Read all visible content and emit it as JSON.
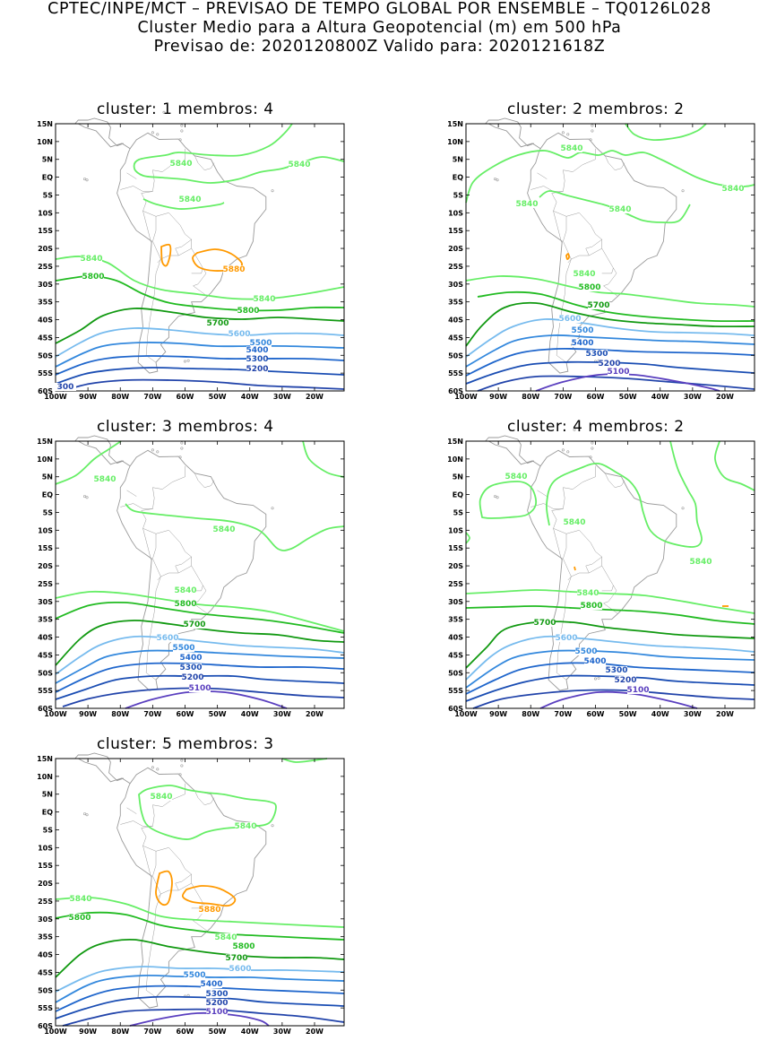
{
  "header": {
    "line1": "CPTEC/INPE/MCT – PREVISAO DE TEMPO GLOBAL POR ENSEMBLE – TQ0126L028",
    "line2": "Cluster Medio para a Altura Geopotencial (m) em 500 hPa",
    "line3": "Previsao de: 2020120800Z    Valido para: 2020121618Z"
  },
  "axes": {
    "lat_ticks": [
      "15N",
      "10N",
      "5N",
      "EQ",
      "5S",
      "10S",
      "15S",
      "20S",
      "25S",
      "30S",
      "35S",
      "40S",
      "45S",
      "50S",
      "55S",
      "60S"
    ],
    "lon_ticks": [
      "100W",
      "90W",
      "80W",
      "70W",
      "60W",
      "50W",
      "40W",
      "30W",
      "20W"
    ]
  },
  "colors": {
    "c5840": "#66ee66",
    "c5800": "#22bb22",
    "c5700": "#119911",
    "c5600": "#77bbee",
    "c5500": "#3388dd",
    "c5400": "#1f66cc",
    "c5300": "#1a4db3",
    "c5200": "#2244aa",
    "c5100": "#5a3fbf",
    "c5880": "#ff9900",
    "coast": "#9a9a9a"
  },
  "panels": [
    {
      "title": "cluster: 1   membros: 4",
      "labels": [
        {
          "text": "5840",
          "c": "c5840"
        },
        {
          "text": "5840",
          "c": "c5840"
        },
        {
          "text": "5840",
          "c": "c5840"
        },
        {
          "text": "5840",
          "c": "c5840"
        },
        {
          "text": "5800",
          "c": "c5800"
        },
        {
          "text": "5880",
          "c": "c5880"
        },
        {
          "text": "5840",
          "c": "c5840"
        },
        {
          "text": "5800",
          "c": "c5800"
        },
        {
          "text": "5700",
          "c": "c5700"
        },
        {
          "text": "5600",
          "c": "c5600"
        },
        {
          "text": "5500",
          "c": "c5500"
        },
        {
          "text": "5400",
          "c": "c5400"
        },
        {
          "text": "5300",
          "c": "c5300"
        },
        {
          "text": "5200",
          "c": "c5200"
        },
        {
          "text": "300",
          "c": "c5200"
        }
      ]
    },
    {
      "title": "cluster: 2   membros: 2",
      "labels": [
        {
          "text": "5840",
          "c": "c5840"
        },
        {
          "text": "5840",
          "c": "c5840"
        },
        {
          "text": "5840",
          "c": "c5840"
        },
        {
          "text": "5840",
          "c": "c5840"
        },
        {
          "text": "5840",
          "c": "c5840"
        },
        {
          "text": "5800",
          "c": "c5800"
        },
        {
          "text": "5700",
          "c": "c5700"
        },
        {
          "text": "5600",
          "c": "c5600"
        },
        {
          "text": "5500",
          "c": "c5500"
        },
        {
          "text": "5400",
          "c": "c5400"
        },
        {
          "text": "5300",
          "c": "c5300"
        },
        {
          "text": "5200",
          "c": "c5200"
        },
        {
          "text": "5100",
          "c": "c5100"
        }
      ]
    },
    {
      "title": "cluster: 3   membros: 4",
      "labels": [
        {
          "text": "5840",
          "c": "c5840"
        },
        {
          "text": "5840",
          "c": "c5840"
        },
        {
          "text": "5840",
          "c": "c5840"
        },
        {
          "text": "5800",
          "c": "c5800"
        },
        {
          "text": "5700",
          "c": "c5700"
        },
        {
          "text": "5600",
          "c": "c5600"
        },
        {
          "text": "5500",
          "c": "c5500"
        },
        {
          "text": "5400",
          "c": "c5400"
        },
        {
          "text": "5300",
          "c": "c5300"
        },
        {
          "text": "5200",
          "c": "c5200"
        },
        {
          "text": "5100",
          "c": "c5100"
        }
      ]
    },
    {
      "title": "cluster: 4   membros: 2",
      "labels": [
        {
          "text": "5840",
          "c": "c5840"
        },
        {
          "text": "5840",
          "c": "c5840"
        },
        {
          "text": "5840",
          "c": "c5840"
        },
        {
          "text": "5840",
          "c": "c5840"
        },
        {
          "text": "5800",
          "c": "c5800"
        },
        {
          "text": "5700",
          "c": "c5700"
        },
        {
          "text": "5600",
          "c": "c5600"
        },
        {
          "text": "5500",
          "c": "c5500"
        },
        {
          "text": "5400",
          "c": "c5400"
        },
        {
          "text": "5300",
          "c": "c5300"
        },
        {
          "text": "5200",
          "c": "c5200"
        },
        {
          "text": "5100",
          "c": "c5100"
        }
      ]
    },
    {
      "title": "cluster: 5   membros: 3",
      "labels": [
        {
          "text": "5840",
          "c": "c5840"
        },
        {
          "text": "5840",
          "c": "c5840"
        },
        {
          "text": "5840",
          "c": "c5840"
        },
        {
          "text": "5800",
          "c": "c5800"
        },
        {
          "text": "5880",
          "c": "c5880"
        },
        {
          "text": "5840",
          "c": "c5840"
        },
        {
          "text": "5800",
          "c": "c5800"
        },
        {
          "text": "5700",
          "c": "c5700"
        },
        {
          "text": "5600",
          "c": "c5600"
        },
        {
          "text": "5500",
          "c": "c5500"
        },
        {
          "text": "5400",
          "c": "c5400"
        },
        {
          "text": "5300",
          "c": "c5300"
        },
        {
          "text": "5200",
          "c": "c5200"
        },
        {
          "text": "5100",
          "c": "c5100"
        }
      ]
    }
  ]
}
